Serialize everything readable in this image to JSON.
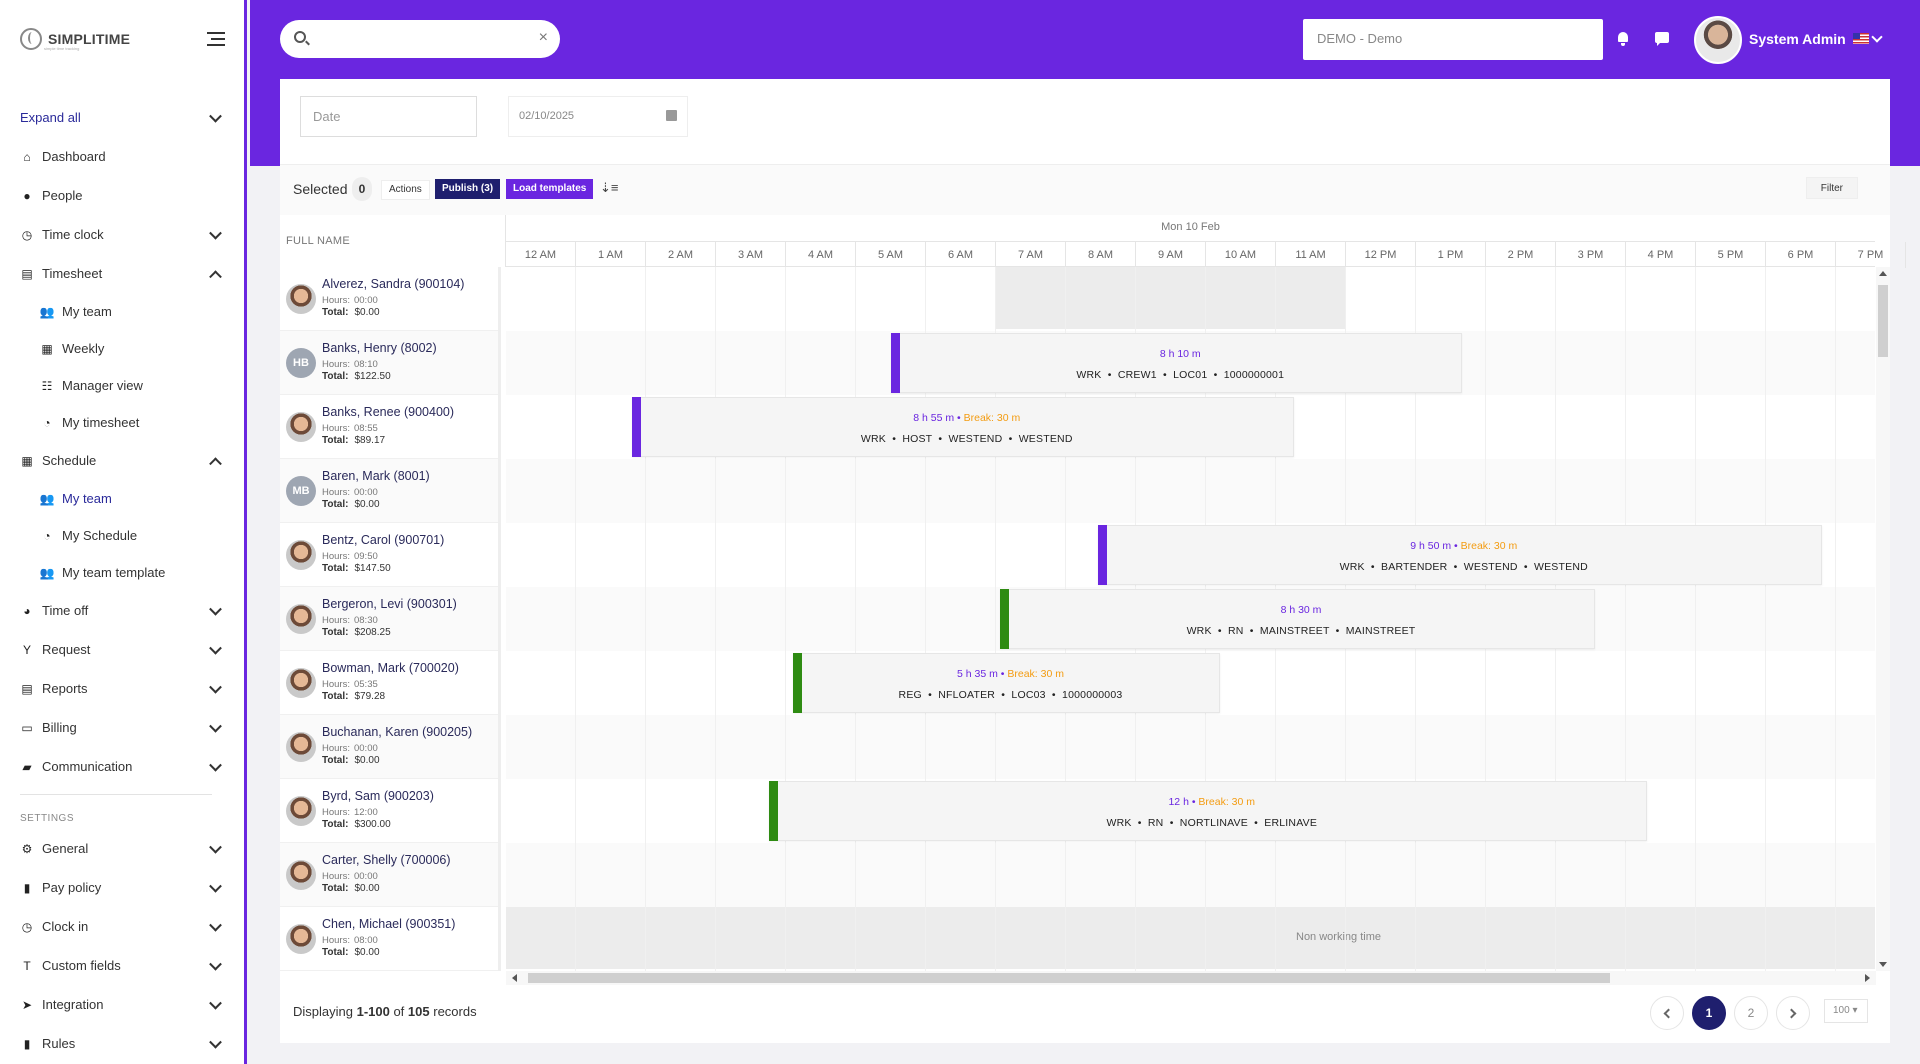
{
  "app": {
    "brand": "SIMPLITIME",
    "tagline": "simple time tracking"
  },
  "search": {
    "placeholder": "",
    "value": ""
  },
  "header": {
    "company": "DEMO - Demo",
    "user_name": "System Admin"
  },
  "sidebar": {
    "items": [
      {
        "label": "Expand all",
        "icon": "expand-icon"
      },
      {
        "label": "Dashboard",
        "icon": "home-icon"
      },
      {
        "label": "People",
        "icon": "person-icon"
      },
      {
        "label": "Time clock",
        "icon": "clock-icon"
      },
      {
        "label": "Timesheet",
        "icon": "timesheet-icon"
      },
      {
        "label": "My team",
        "icon": "team-icon"
      },
      {
        "label": "Weekly",
        "icon": "calendar-icon"
      },
      {
        "label": "Manager view",
        "icon": "manager-icon"
      },
      {
        "label": "My timesheet",
        "icon": "user-clock-icon"
      },
      {
        "label": "Schedule",
        "icon": "calendar-icon"
      },
      {
        "label": "My team",
        "icon": "team-icon"
      },
      {
        "label": "My Schedule",
        "icon": "user-clock-icon"
      },
      {
        "label": "My team template",
        "icon": "team-icon"
      },
      {
        "label": "Time off",
        "icon": "time-off-icon"
      },
      {
        "label": "Request",
        "icon": "request-icon"
      },
      {
        "label": "Reports",
        "icon": "reports-icon"
      },
      {
        "label": "Billing",
        "icon": "billing-icon"
      },
      {
        "label": "Communication",
        "icon": "chat-icon"
      }
    ],
    "settings_label": "SETTINGS",
    "settings_items": [
      {
        "label": "General",
        "icon": "gears-icon"
      },
      {
        "label": "Pay policy",
        "icon": "policy-icon"
      },
      {
        "label": "Clock in",
        "icon": "clock-icon"
      },
      {
        "label": "Custom fields",
        "icon": "text-icon"
      },
      {
        "label": "Integration",
        "icon": "send-icon"
      },
      {
        "label": "Rules",
        "icon": "rules-icon"
      }
    ]
  },
  "filters": {
    "date_placeholder": "Date",
    "date_value": "02/10/2025"
  },
  "toolbar": {
    "selected_label": "Selected",
    "selected_count": "0",
    "actions": "Actions",
    "publish": "Publish (3)",
    "load_templates": "Load templates",
    "filter": "Filter"
  },
  "grid": {
    "name_header": "FULL NAME",
    "day_label": "Mon 10 Feb",
    "hours": [
      "12 AM",
      "1 AM",
      "2 AM",
      "3 AM",
      "4 AM",
      "5 AM",
      "6 AM",
      "7 AM",
      "8 AM",
      "9 AM",
      "10 AM",
      "11 AM",
      "12 PM",
      "1 PM",
      "2 PM",
      "3 PM",
      "4 PM",
      "5 PM",
      "6 PM",
      "7 PM"
    ],
    "hours_label": "Hours:",
    "total_label": "Total:",
    "non_working_label": "Non working time",
    "employees": [
      {
        "name": "Alverez, Sandra (900104)",
        "hours": "00:00",
        "total": "$0.00",
        "avatar": "photo",
        "initials": ""
      },
      {
        "name": "Banks, Henry (8002)",
        "hours": "08:10",
        "total": "$122.50",
        "avatar": "initials",
        "initials": "HB"
      },
      {
        "name": "Banks, Renee (900400)",
        "hours": "08:55",
        "total": "$89.17",
        "avatar": "photo",
        "initials": ""
      },
      {
        "name": "Baren, Mark (8001)",
        "hours": "00:00",
        "total": "$0.00",
        "avatar": "initials",
        "initials": "MB"
      },
      {
        "name": "Bentz, Carol (900701)",
        "hours": "09:50",
        "total": "$147.50",
        "avatar": "photo",
        "initials": ""
      },
      {
        "name": "Bergeron, Levi (900301)",
        "hours": "08:30",
        "total": "$208.25",
        "avatar": "photo",
        "initials": ""
      },
      {
        "name": "Bowman, Mark (700020)",
        "hours": "05:35",
        "total": "$79.28",
        "avatar": "photo",
        "initials": ""
      },
      {
        "name": "Buchanan, Karen (900205)",
        "hours": "00:00",
        "total": "$0.00",
        "avatar": "photo",
        "initials": ""
      },
      {
        "name": "Byrd, Sam (900203)",
        "hours": "12:00",
        "total": "$300.00",
        "avatar": "photo",
        "initials": ""
      },
      {
        "name": "Carter, Shelly (700006)",
        "hours": "00:00",
        "total": "$0.00",
        "avatar": "photo",
        "initials": ""
      },
      {
        "name": "Chen, Michael (900351)",
        "hours": "08:00",
        "total": "$0.00",
        "avatar": "photo",
        "initials": ""
      }
    ],
    "shifts": [
      {
        "row": 1,
        "start": 5.5,
        "end": 13.65,
        "duration": "8 h 10 m",
        "break": "",
        "details": "WRK  •  CREW1  •  LOC01  •  1000000001",
        "color": "#6a26e0"
      },
      {
        "row": 2,
        "start": 1.8,
        "end": 11.25,
        "duration": "8 h 55 m",
        "break": "Break: 30 m",
        "details": "WRK  •  HOST  •  WESTEND  •  WESTEND",
        "color": "#6a26e0"
      },
      {
        "row": 4,
        "start": 8.45,
        "end": 18.8,
        "duration": "9 h 50 m",
        "break": "Break: 30 m",
        "details": "WRK  •  BARTENDER  •  WESTEND  •  WESTEND",
        "color": "#6a26e0"
      },
      {
        "row": 5,
        "start": 7.05,
        "end": 15.55,
        "duration": "8 h 30 m",
        "break": "",
        "details": "WRK  •  RN  •  MAINSTREET  •  MAINSTREET",
        "color": "#2e8b12"
      },
      {
        "row": 6,
        "start": 4.1,
        "end": 10.2,
        "duration": "5 h 35 m",
        "break": "Break: 30 m",
        "details": "REG  •  NFLOATER  •  LOC03  •  1000000003",
        "color": "#2e8b12"
      },
      {
        "row": 8,
        "start": 3.75,
        "end": 16.3,
        "duration": "12 h",
        "break": "Break: 30 m",
        "details": "WRK  •  RN  •  NORTLINAVE  •  ERLINAVE",
        "color": "#2e8b12"
      }
    ],
    "non_working": [
      {
        "row": 0,
        "start": 7.0,
        "end": 12.0
      },
      {
        "row": 10,
        "start": 0,
        "end": 20,
        "label": true
      }
    ]
  },
  "footer": {
    "display_prefix": "Displaying ",
    "range": "1-100",
    "of": " of ",
    "total": "105",
    "suffix": " records",
    "pages": [
      "1",
      "2"
    ],
    "page_size": "100"
  }
}
